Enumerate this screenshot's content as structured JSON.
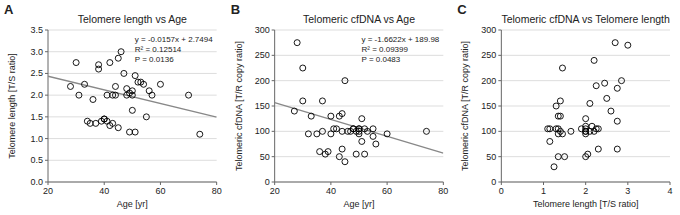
{
  "chart_data": [
    {
      "type": "scatter",
      "panel_label": "A",
      "title": "Telomere length vs Age",
      "x_label": "Age [yr]",
      "y_label": "Telomere length [T/S ratio]",
      "xlim": [
        20,
        80
      ],
      "ylim": [
        0,
        3.5
      ],
      "xticks": [
        20,
        40,
        60,
        80
      ],
      "yticks": [
        {
          "value": 0,
          "label": "0.0"
        },
        0.5,
        {
          "value": 1,
          "label": "1.0"
        },
        1.5,
        {
          "value": 2,
          "label": "2.0"
        },
        2.5,
        {
          "value": 3,
          "label": "3.0"
        },
        3.5
      ],
      "grid": true,
      "color": "#000000",
      "marker": "open-circle",
      "x": [
        28,
        30,
        31,
        33,
        34,
        35,
        36,
        37,
        38,
        38,
        39,
        40,
        40,
        41,
        41,
        42,
        42,
        43,
        43,
        44,
        44,
        45,
        45,
        46,
        47,
        48,
        48,
        49,
        49,
        50,
        50,
        50,
        51,
        51,
        52,
        53,
        54,
        55,
        56,
        57,
        60,
        70,
        74
      ],
      "y": [
        2.2,
        2.75,
        2.0,
        2.25,
        1.4,
        1.35,
        1.9,
        1.35,
        2.6,
        2.7,
        1.4,
        1.45,
        1.45,
        1.4,
        2.0,
        1.3,
        2.75,
        1.35,
        2.0,
        2.0,
        2.2,
        2.85,
        1.25,
        3.0,
        2.5,
        2.0,
        2.15,
        2.05,
        1.15,
        1.65,
        2.0,
        2.1,
        1.15,
        2.45,
        2.3,
        2.3,
        2.25,
        1.5,
        2.1,
        2.0,
        2.25,
        2.0,
        1.1
      ],
      "trend_line": {
        "x": [
          20,
          80
        ],
        "y": [
          2.4354,
          1.4934
        ],
        "color": "#888888"
      },
      "annotations": [
        "y = -0.0157x + 2.7494",
        "R² = 0.12514",
        "P = 0.0136"
      ]
    },
    {
      "type": "scatter",
      "panel_label": "B",
      "title": "Telomeric cfDNA vs Age",
      "x_label": "Age [yr]",
      "y_label": "Telomeric cfDNA [T/R copy ratio]",
      "xlim": [
        20,
        80
      ],
      "ylim": [
        0,
        300
      ],
      "xticks": [
        20,
        40,
        60,
        80
      ],
      "yticks": [
        0,
        50,
        100,
        150,
        200,
        250,
        300
      ],
      "grid": true,
      "color": "#000000",
      "marker": "open-circle",
      "x": [
        27,
        28,
        30,
        30,
        32,
        33,
        35,
        36,
        37,
        37,
        38,
        39,
        40,
        40,
        41,
        42,
        43,
        43,
        44,
        44,
        44,
        45,
        45,
        46,
        47,
        48,
        48,
        49,
        49,
        50,
        50,
        50,
        50,
        51,
        51,
        52,
        52,
        53,
        55,
        55,
        56,
        60,
        74
      ],
      "y": [
        140,
        275,
        160,
        225,
        95,
        130,
        95,
        60,
        100,
        160,
        55,
        60,
        95,
        130,
        105,
        105,
        50,
        130,
        100,
        65,
        135,
        40,
        200,
        100,
        100,
        105,
        105,
        55,
        100,
        95,
        105,
        100,
        105,
        80,
        125,
        105,
        55,
        100,
        90,
        105,
        75,
        95,
        100
      ],
      "trend_line": {
        "x": [
          20,
          80
        ],
        "y": [
          156.736,
          57.004
        ],
        "color": "#888888"
      },
      "annotations": [
        "y = -1.6622x + 189.98",
        "R² = 0.09399",
        "P = 0.0483"
      ]
    },
    {
      "type": "scatter",
      "panel_label": "C",
      "title": "Telomeric cfDNA vs Telomere length",
      "x_label": "Telomere length [T/S ratio]",
      "y_label": "Telomeric cfDNA [T/R copy ratio]",
      "xlim": [
        0,
        4
      ],
      "ylim": [
        0,
        300
      ],
      "xticks": [
        0,
        1,
        2,
        3,
        4
      ],
      "yticks": [
        0,
        50,
        100,
        150,
        200,
        250,
        300
      ],
      "grid": true,
      "color": "#000000",
      "marker": "open-circle",
      "x": [
        1.4,
        1.35,
        1.9,
        1.35,
        2.6,
        2.7,
        1.4,
        1.45,
        1.45,
        1.4,
        2.0,
        1.3,
        2.75,
        1.35,
        2.0,
        1.3,
        2.75,
        1.35,
        2.0,
        2.0,
        2.2,
        2.85,
        1.25,
        3.0,
        2.5,
        2.0,
        2.15,
        2.05,
        1.15,
        1.65,
        2.0,
        2.1,
        1.15,
        2.45,
        2.3,
        2.3,
        2.25,
        1.5,
        2.1,
        2.0,
        2.25,
        2.2,
        2.75,
        1.1
      ],
      "y": [
        130,
        95,
        105,
        130,
        140,
        275,
        160,
        225,
        95,
        100,
        95,
        150,
        120,
        105,
        100,
        105,
        65,
        50,
        125,
        100,
        240,
        200,
        30,
        270,
        165,
        110,
        110,
        55,
        105,
        100,
        105,
        100,
        80,
        195,
        105,
        65,
        190,
        50,
        155,
        50,
        105,
        100,
        185,
        105
      ]
    }
  ]
}
